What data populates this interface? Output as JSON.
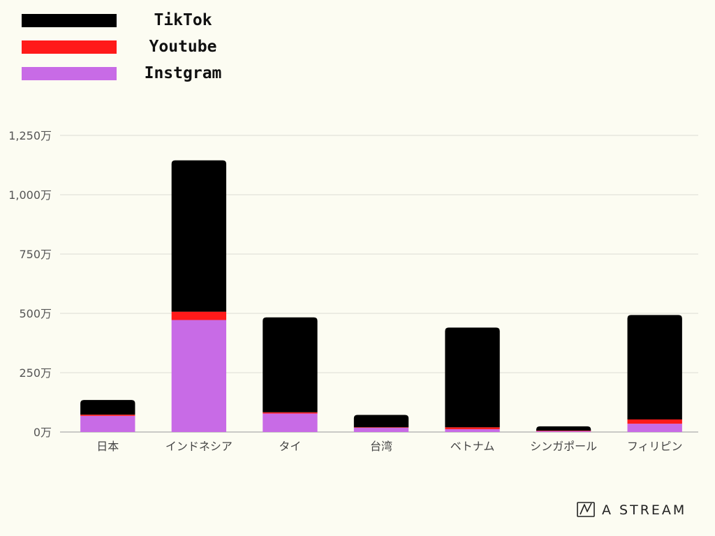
{
  "chart_data": {
    "type": "bar",
    "stacked": true,
    "categories": [
      "日本",
      "インドネシア",
      "タイ",
      "台湾",
      "ベトナム",
      "シンガポール",
      "フィリピン"
    ],
    "series": [
      {
        "name": "Instgram",
        "color": "#c86be6",
        "values": [
          68,
          472,
          78,
          18,
          12,
          4,
          35
        ]
      },
      {
        "name": "Youtube",
        "color": "#ff1a1a",
        "values": [
          5,
          35,
          5,
          2,
          8,
          2,
          18
        ]
      },
      {
        "name": "TikTok",
        "color": "#000000",
        "values": [
          62,
          638,
          400,
          52,
          420,
          18,
          440
        ]
      }
    ],
    "ylim": [
      0,
      1250
    ],
    "yticks": [
      0,
      250,
      500,
      750,
      1000,
      1250
    ],
    "ytick_labels": [
      "0万",
      "250万",
      "500万",
      "750万",
      "1,000万",
      "1,250万"
    ],
    "grid": true,
    "legend_position": "top-left"
  },
  "legend": [
    {
      "name": "TikTok",
      "color": "#000000"
    },
    {
      "name": "Youtube",
      "color": "#ff1a1a"
    },
    {
      "name": "Instgram",
      "color": "#c86be6"
    }
  ],
  "brand": {
    "text": "A STREAM",
    "icon": "a-stream-logo-icon"
  }
}
